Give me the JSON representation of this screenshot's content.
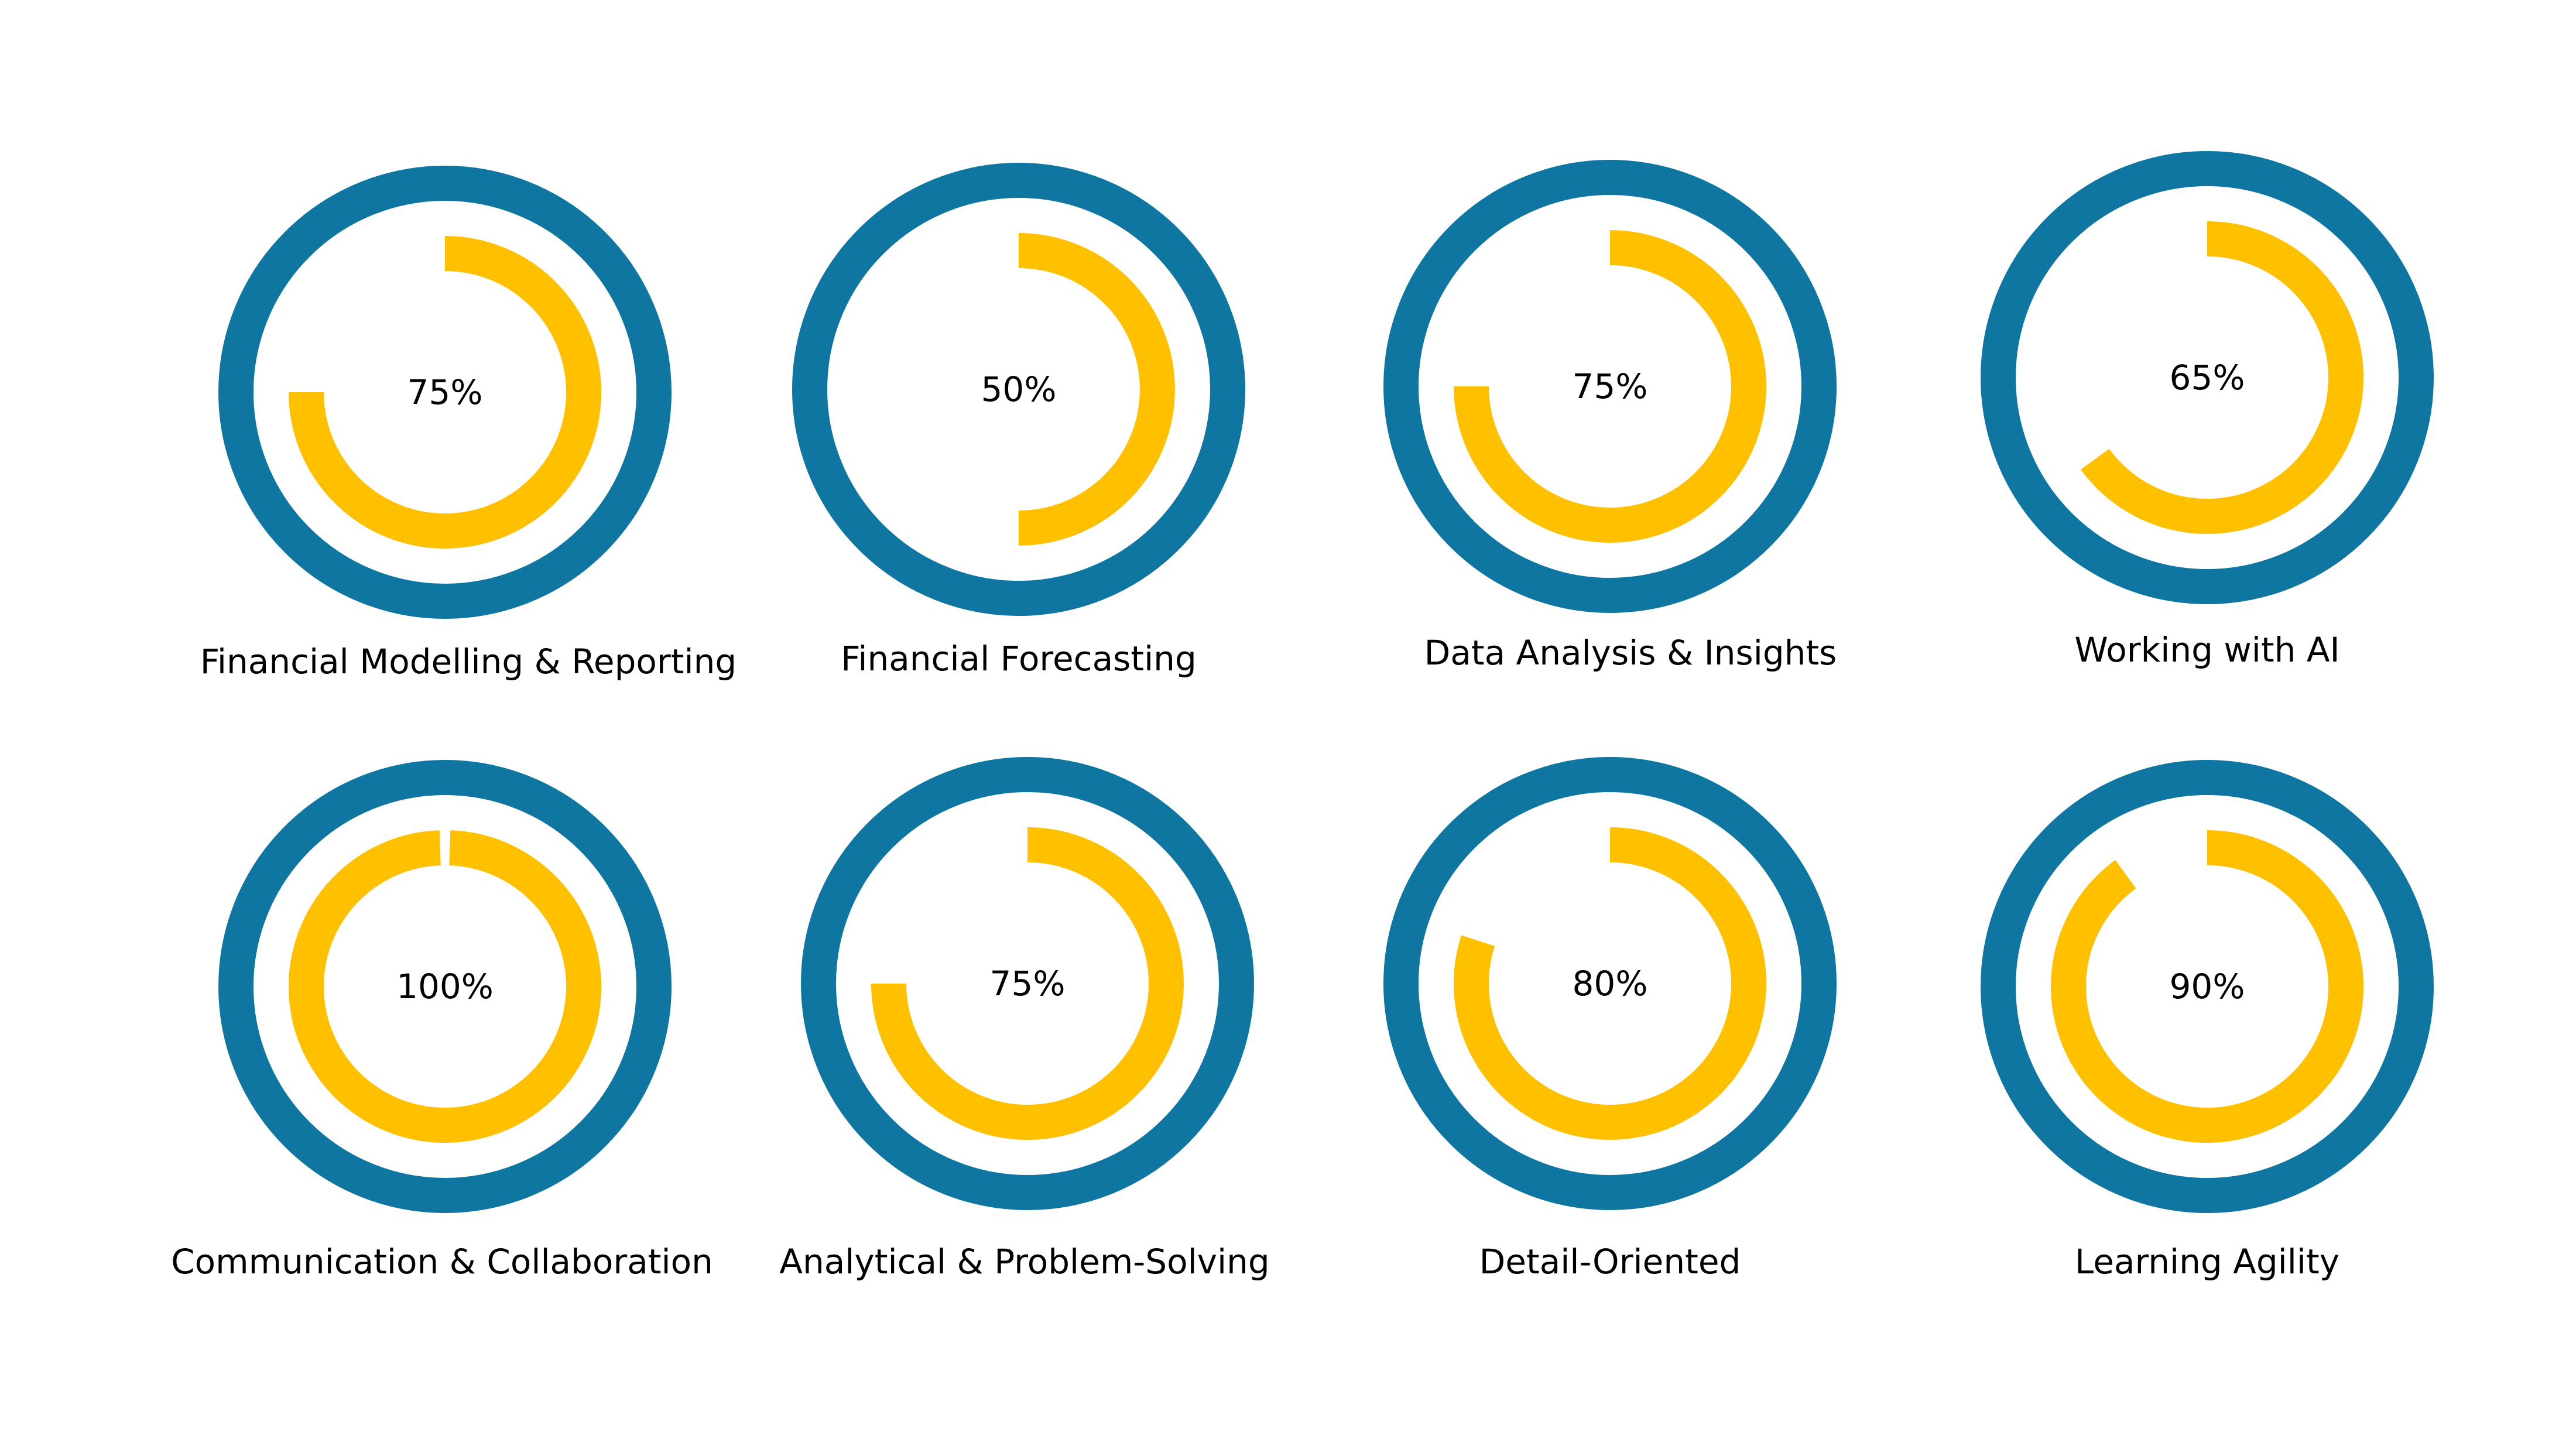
{
  "colors": {
    "ring": "#0e76a0",
    "progress": "#ffc000",
    "background": "#ffffff",
    "text": "#000000"
  },
  "chart_data": [
    {
      "type": "progress-ring",
      "label": "Financial Modelling & Reporting",
      "value": 75,
      "value_label": "75%"
    },
    {
      "type": "progress-ring",
      "label": "Financial Forecasting",
      "value": 50,
      "value_label": "50%"
    },
    {
      "type": "progress-ring",
      "label": "Data Analysis & Insights",
      "value": 75,
      "value_label": "75%"
    },
    {
      "type": "progress-ring",
      "label": "Working with AI",
      "value": 65,
      "value_label": "65%"
    },
    {
      "type": "progress-ring",
      "label": "Communication & Collaboration",
      "value": 100,
      "value_label": "100%"
    },
    {
      "type": "progress-ring",
      "label": "Analytical & Problem-Solving",
      "value": 75,
      "value_label": "75%"
    },
    {
      "type": "progress-ring",
      "label": "Detail-Oriented",
      "value": 80,
      "value_label": "80%"
    },
    {
      "type": "progress-ring",
      "label": "Learning Agility",
      "value": 90,
      "value_label": "90%"
    }
  ]
}
